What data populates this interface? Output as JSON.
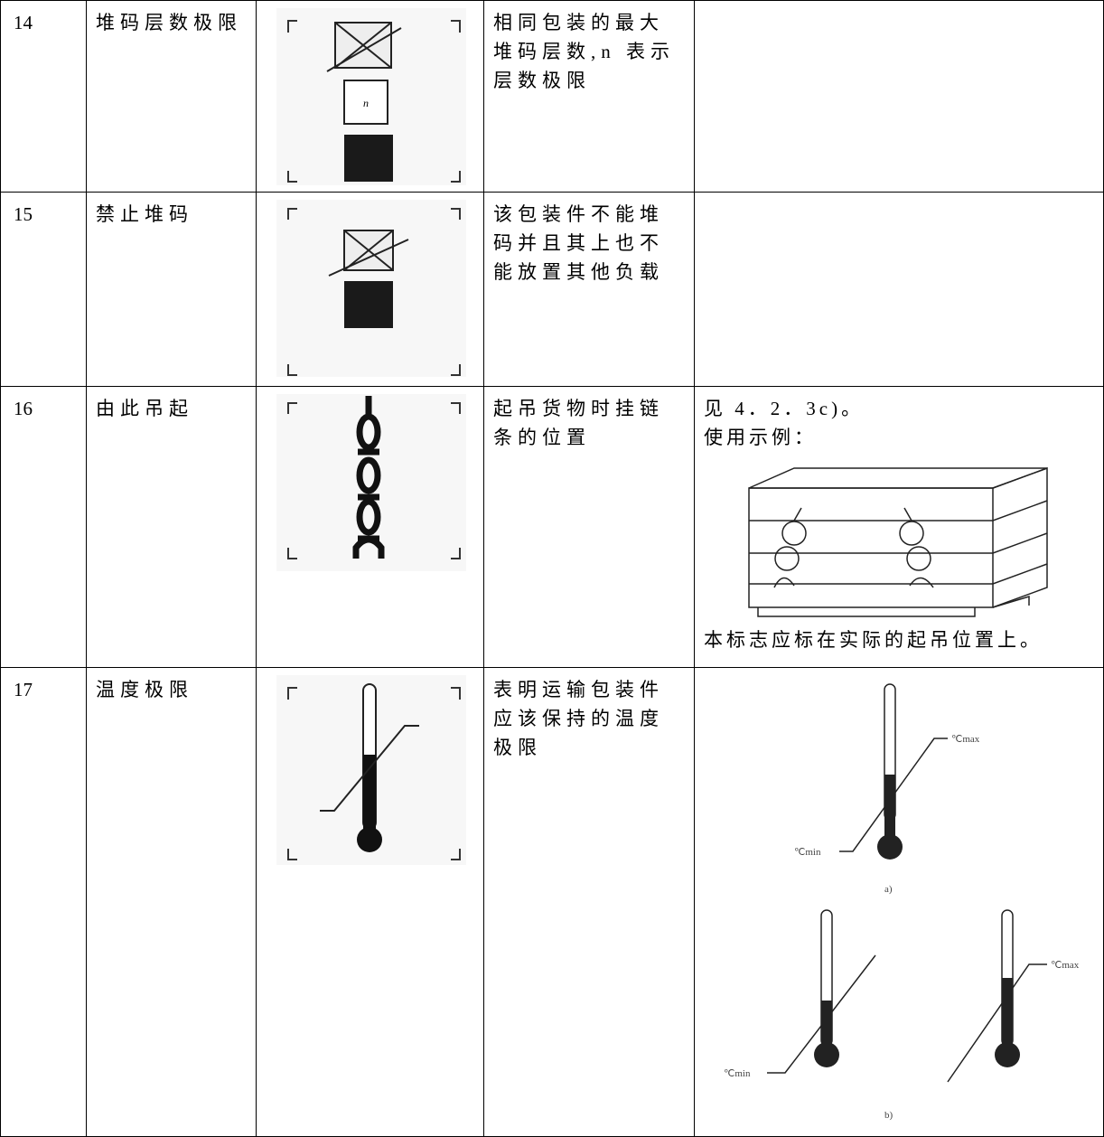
{
  "table": {
    "rows": [
      {
        "number": "14",
        "name": "堆码层数极限",
        "icon_label": "n",
        "description": "相同包装的最大堆码层数,n 表示层数极限"
      },
      {
        "number": "15",
        "name": "禁止堆码",
        "description": "该包装件不能堆码并且其上也不能放置其他负载"
      },
      {
        "number": "16",
        "name": "由此吊起",
        "description": "起吊货物时挂链条的位置",
        "notes": [
          "见 4．2．3c)。",
          "使用示例：",
          "本标志应标在实际的起吊位置上。"
        ]
      },
      {
        "number": "17",
        "name": "温度极限",
        "description": "表明运输包装件应该保持的温度极限",
        "figure_labels": [
          "℃max",
          "℃min",
          "a)",
          "℃min",
          "℃max",
          "b)"
        ]
      }
    ]
  }
}
